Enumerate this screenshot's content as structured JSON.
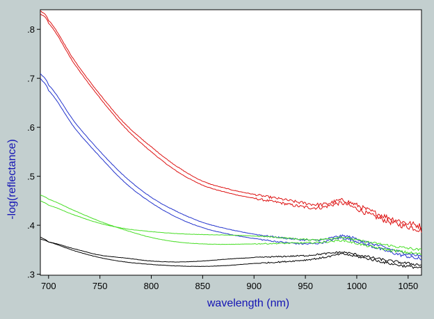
{
  "chart_data": {
    "type": "line",
    "title": "",
    "xlabel": "wavelength (nm)",
    "ylabel": "-log(reflectance)",
    "xlim": [
      692,
      1063
    ],
    "ylim": [
      0.298,
      0.84
    ],
    "xticks": [
      700,
      750,
      800,
      850,
      900,
      950,
      1000,
      1050
    ],
    "xtick_labels": [
      "700",
      "750",
      "800",
      "850",
      "900",
      "950",
      "1000",
      "1050"
    ],
    "yticks": [
      0.3,
      0.4,
      0.5,
      0.6,
      0.7,
      0.8
    ],
    "ytick_labels": [
      ".3",
      ".4",
      ".5",
      ".6",
      ".7",
      ".8"
    ],
    "grid": false,
    "legend": "none",
    "colors": {
      "background": "#c3cfcf",
      "plot_area": "#ffffff",
      "axis_title": "#1414b4",
      "red": "#dd1111",
      "blue": "#2233cc",
      "green": "#44dd22",
      "black": "#000000"
    },
    "x": [
      692,
      700,
      725,
      750,
      775,
      800,
      825,
      850,
      875,
      900,
      925,
      950,
      965,
      975,
      985,
      995,
      1010,
      1025,
      1040,
      1050,
      1063
    ],
    "series": [
      {
        "color": "#dd1111",
        "noise": 0.002,
        "values": [
          0.832,
          0.812,
          0.73,
          0.66,
          0.598,
          0.55,
          0.51,
          0.482,
          0.466,
          0.455,
          0.446,
          0.437,
          0.436,
          0.441,
          0.445,
          0.438,
          0.424,
          0.412,
          0.402,
          0.397,
          0.39
        ]
      },
      {
        "color": "#dd1111",
        "noise": 0.002,
        "values": [
          0.838,
          0.818,
          0.737,
          0.667,
          0.606,
          0.56,
          0.52,
          0.49,
          0.474,
          0.463,
          0.454,
          0.445,
          0.442,
          0.446,
          0.451,
          0.445,
          0.432,
          0.42,
          0.41,
          0.404,
          0.398
        ]
      },
      {
        "color": "#2233cc",
        "noise": 0.0012,
        "values": [
          0.7,
          0.675,
          0.6,
          0.54,
          0.486,
          0.446,
          0.416,
          0.395,
          0.382,
          0.373,
          0.366,
          0.362,
          0.364,
          0.37,
          0.374,
          0.37,
          0.36,
          0.35,
          0.341,
          0.336,
          0.33
        ]
      },
      {
        "color": "#2233cc",
        "noise": 0.0012,
        "values": [
          0.71,
          0.686,
          0.612,
          0.551,
          0.498,
          0.457,
          0.428,
          0.406,
          0.392,
          0.382,
          0.375,
          0.37,
          0.37,
          0.374,
          0.378,
          0.375,
          0.365,
          0.356,
          0.347,
          0.342,
          0.337
        ]
      },
      {
        "color": "#44dd22",
        "noise": 0.001,
        "values": [
          0.45,
          0.441,
          0.421,
          0.404,
          0.393,
          0.387,
          0.383,
          0.381,
          0.38,
          0.378,
          0.375,
          0.371,
          0.371,
          0.373,
          0.376,
          0.372,
          0.366,
          0.361,
          0.356,
          0.353,
          0.349
        ]
      },
      {
        "color": "#44dd22",
        "noise": 0.001,
        "values": [
          0.462,
          0.453,
          0.43,
          0.408,
          0.39,
          0.375,
          0.366,
          0.362,
          0.361,
          0.362,
          0.363,
          0.364,
          0.365,
          0.367,
          0.369,
          0.365,
          0.358,
          0.352,
          0.347,
          0.344,
          0.341
        ]
      },
      {
        "color": "#000000",
        "noise": 0.001,
        "values": [
          0.372,
          0.366,
          0.352,
          0.339,
          0.333,
          0.327,
          0.325,
          0.327,
          0.331,
          0.334,
          0.336,
          0.338,
          0.341,
          0.343,
          0.345,
          0.342,
          0.336,
          0.33,
          0.325,
          0.322,
          0.319
        ]
      },
      {
        "color": "#000000",
        "noise": 0.001,
        "values": [
          0.376,
          0.366,
          0.348,
          0.334,
          0.325,
          0.32,
          0.317,
          0.316,
          0.318,
          0.322,
          0.325,
          0.329,
          0.333,
          0.337,
          0.341,
          0.338,
          0.332,
          0.325,
          0.319,
          0.316,
          0.313
        ]
      }
    ]
  }
}
